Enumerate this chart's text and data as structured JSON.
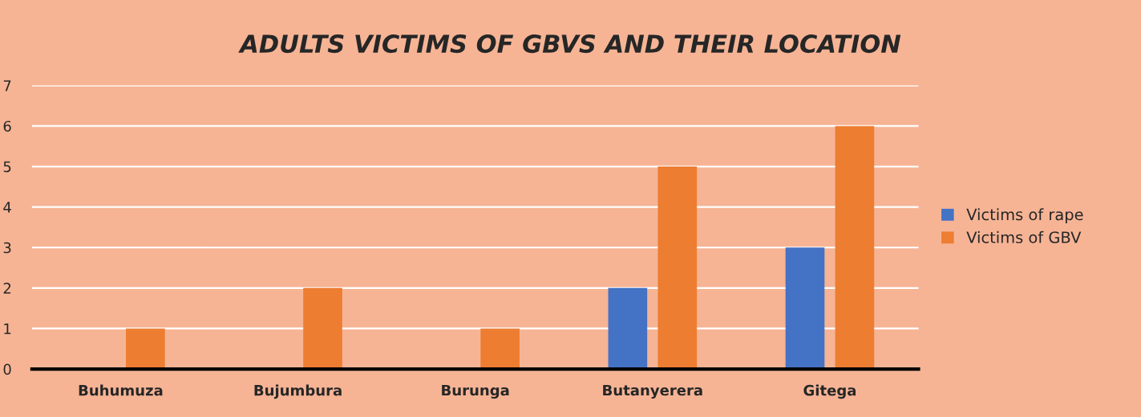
{
  "chart_data": {
    "type": "bar",
    "title": "ADULTS VICTIMS OF GBVS AND THEIR LOCATION",
    "categories": [
      "Buhumuza",
      "Bujumbura",
      "Burunga",
      "Butanyerera",
      "Gitega"
    ],
    "series": [
      {
        "name": "Victims of rape",
        "color": "#4472c4",
        "values": [
          0,
          0,
          0,
          2,
          3
        ]
      },
      {
        "name": "Victims of GBV",
        "color": "#ed7d31",
        "values": [
          1,
          2,
          1,
          5,
          6
        ]
      }
    ],
    "ylim": [
      0,
      7
    ],
    "yticks": [
      0,
      1,
      2,
      3,
      4,
      5,
      6,
      7
    ],
    "grid": "y",
    "legend": "right"
  }
}
